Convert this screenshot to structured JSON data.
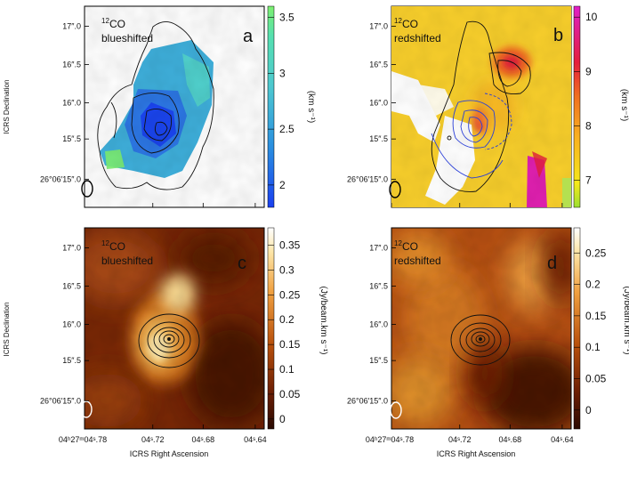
{
  "figure_title": "",
  "axes": {
    "ylabel": "ICRS Declination",
    "xlabel": "ICRS Right Ascension",
    "dec_ticks": [
      "17″.0",
      "16″.5",
      "16″.0",
      "15″.5",
      "26°06′15″.0"
    ],
    "ra_ticks": [
      "04ʰ27ᵐ04ˢ.78",
      "04ˢ.72",
      "04ˢ.68",
      "04ˢ.64"
    ]
  },
  "chart_data": [
    {
      "type": "heatmap",
      "panel": "a",
      "label_iso": "12",
      "label_mol": "CO",
      "label_line2": "blueshifted",
      "quantity": "velocity",
      "colorbar_unit": "(km s⁻¹)",
      "colorbar_ticks": [
        "3.5",
        "3",
        "2.5",
        "2"
      ],
      "colorbar_range": [
        1.8,
        3.6
      ],
      "colormap": [
        "#1a3ff0",
        "#2a8fe0",
        "#4dc8d0",
        "#55e0b0",
        "#7df070"
      ],
      "contours": "black, continuum/outflow outline"
    },
    {
      "type": "heatmap",
      "panel": "b",
      "label_iso": "12",
      "label_mol": "CO",
      "label_line2": "redshifted",
      "quantity": "velocity",
      "colorbar_unit": "(km s⁻¹)",
      "colorbar_ticks": [
        "10",
        "9",
        "8",
        "7"
      ],
      "colorbar_range": [
        6.5,
        10.2
      ],
      "colormap": [
        "#9be030",
        "#f5e81a",
        "#f8b020",
        "#f07020",
        "#e51e3c",
        "#e0208c",
        "#e020c8"
      ],
      "contours": "black and blue"
    },
    {
      "type": "heatmap",
      "panel": "c",
      "label_iso": "12",
      "label_mol": "CO",
      "label_line2": "blueshifted",
      "quantity": "integrated intensity",
      "colorbar_unit": "(Jy/beam.km s⁻¹)",
      "colorbar_ticks": [
        "0.35",
        "0.3",
        "0.25",
        "0.2",
        "0.15",
        "0.1",
        "0.05",
        "0"
      ],
      "colorbar_range": [
        -0.02,
        0.385
      ],
      "colormap": [
        "#2a0a02",
        "#6b1e04",
        "#b8500c",
        "#f0a040",
        "#fde6a8",
        "#ffffff"
      ],
      "contours": "black, compact source"
    },
    {
      "type": "heatmap",
      "panel": "d",
      "label_iso": "12",
      "label_mol": "CO",
      "label_line2": "redshifted",
      "quantity": "integrated intensity",
      "colorbar_unit": "(Jy/beam.km s⁻¹)",
      "colorbar_ticks": [
        "0.25",
        "0.2",
        "0.15",
        "0.1",
        "0.05",
        "0"
      ],
      "colorbar_range": [
        -0.03,
        0.29
      ],
      "colormap": [
        "#2a0a02",
        "#6b1e04",
        "#b8500c",
        "#f0a040",
        "#fde6a8",
        "#ffffff"
      ],
      "contours": "black, compact source"
    }
  ]
}
